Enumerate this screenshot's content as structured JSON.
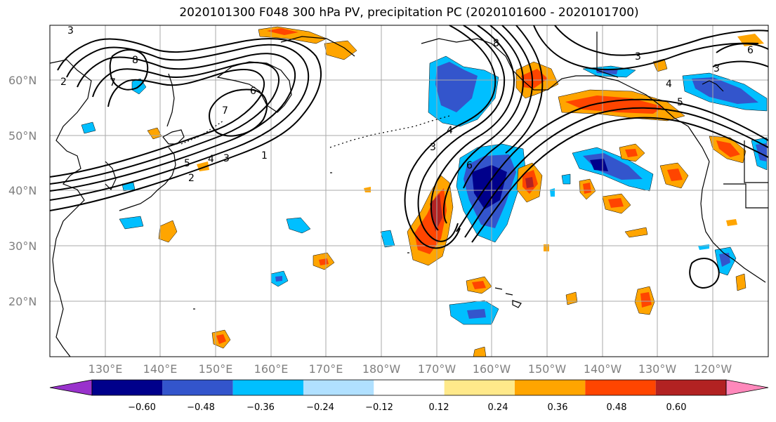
{
  "title": "2020101300 F048 300 hPa PV, precipitation PC (2020101600 - 2020101700)",
  "latitude_labels": [
    "60°N",
    "50°N",
    "40°N",
    "30°N",
    "20°N"
  ],
  "longitude_labels": [
    "130°E",
    "140°E",
    "150°E",
    "160°E",
    "170°E",
    "180°W",
    "170°W",
    "160°W",
    "150°W",
    "140°W",
    "130°W",
    "120°W"
  ],
  "colorbar": {
    "ticks": [
      "−0.60",
      "−0.48",
      "−0.36",
      "−0.24",
      "−0.12",
      "0.12",
      "0.24",
      "0.36",
      "0.48",
      "0.60"
    ],
    "colors": [
      "#9932CC",
      "#00008B",
      "#3355CC",
      "#00BFFF",
      "#B0E0FF",
      "#FFFFFF",
      "#FFE98A",
      "#FFA500",
      "#FF4500",
      "#B22222",
      "#FF88BB"
    ]
  },
  "contour_labels": [
    "3",
    "2",
    "8",
    "7",
    "6",
    "7",
    "5",
    "4",
    "3",
    "2",
    "1",
    "3",
    "4",
    "6",
    "8",
    "3",
    "4",
    "5",
    "6",
    "3"
  ],
  "colors": {
    "grid": "#aaaaaa",
    "contour": "#000000",
    "coast": "#000000"
  }
}
